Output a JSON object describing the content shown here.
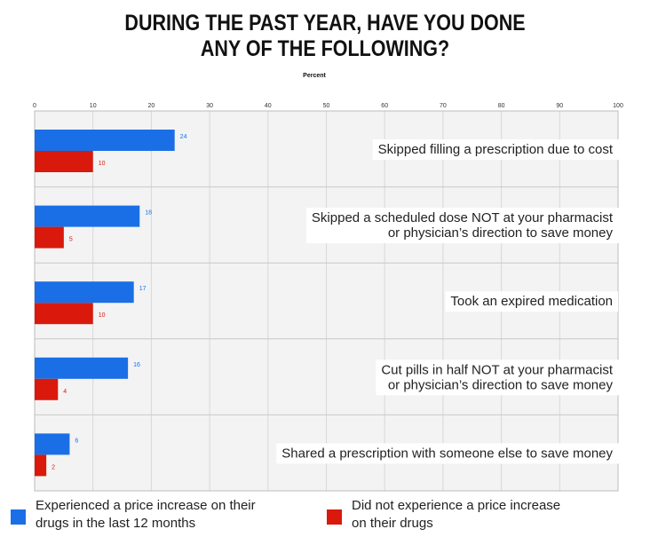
{
  "chart_data": {
    "type": "bar",
    "orientation": "horizontal",
    "title_lines": [
      "DURING THE PAST YEAR, HAVE YOU DONE",
      "ANY OF THE FOLLOWING?"
    ],
    "xlabel": "Percent",
    "xlim": [
      0,
      100
    ],
    "ticks": [
      "0",
      "10",
      "20",
      "30",
      "40",
      "50",
      "60",
      "70",
      "80",
      "90",
      "100"
    ],
    "grid": true,
    "legend_position": "bottom",
    "categories": [
      [
        "Skipped filling a prescription due to cost"
      ],
      [
        "Skipped a scheduled dose NOT at your pharmacist",
        "or physician’s direction to save money"
      ],
      [
        "Took an expired medication"
      ],
      [
        "Cut pills in half NOT at your pharmacist",
        "or physician’s direction to save money"
      ],
      [
        "Shared a prescription with someone else to save money"
      ]
    ],
    "series": [
      {
        "legend_lines": [
          "Experienced a price increase on their",
          "drugs in the last 12 months"
        ],
        "color": "#1a6fe6",
        "values": [
          24,
          18,
          17,
          16,
          6
        ]
      },
      {
        "legend_lines": [
          "Did not experience a price increase",
          "on their drugs"
        ],
        "color": "#d9190b",
        "values": [
          10,
          5,
          10,
          4,
          2
        ]
      }
    ]
  }
}
